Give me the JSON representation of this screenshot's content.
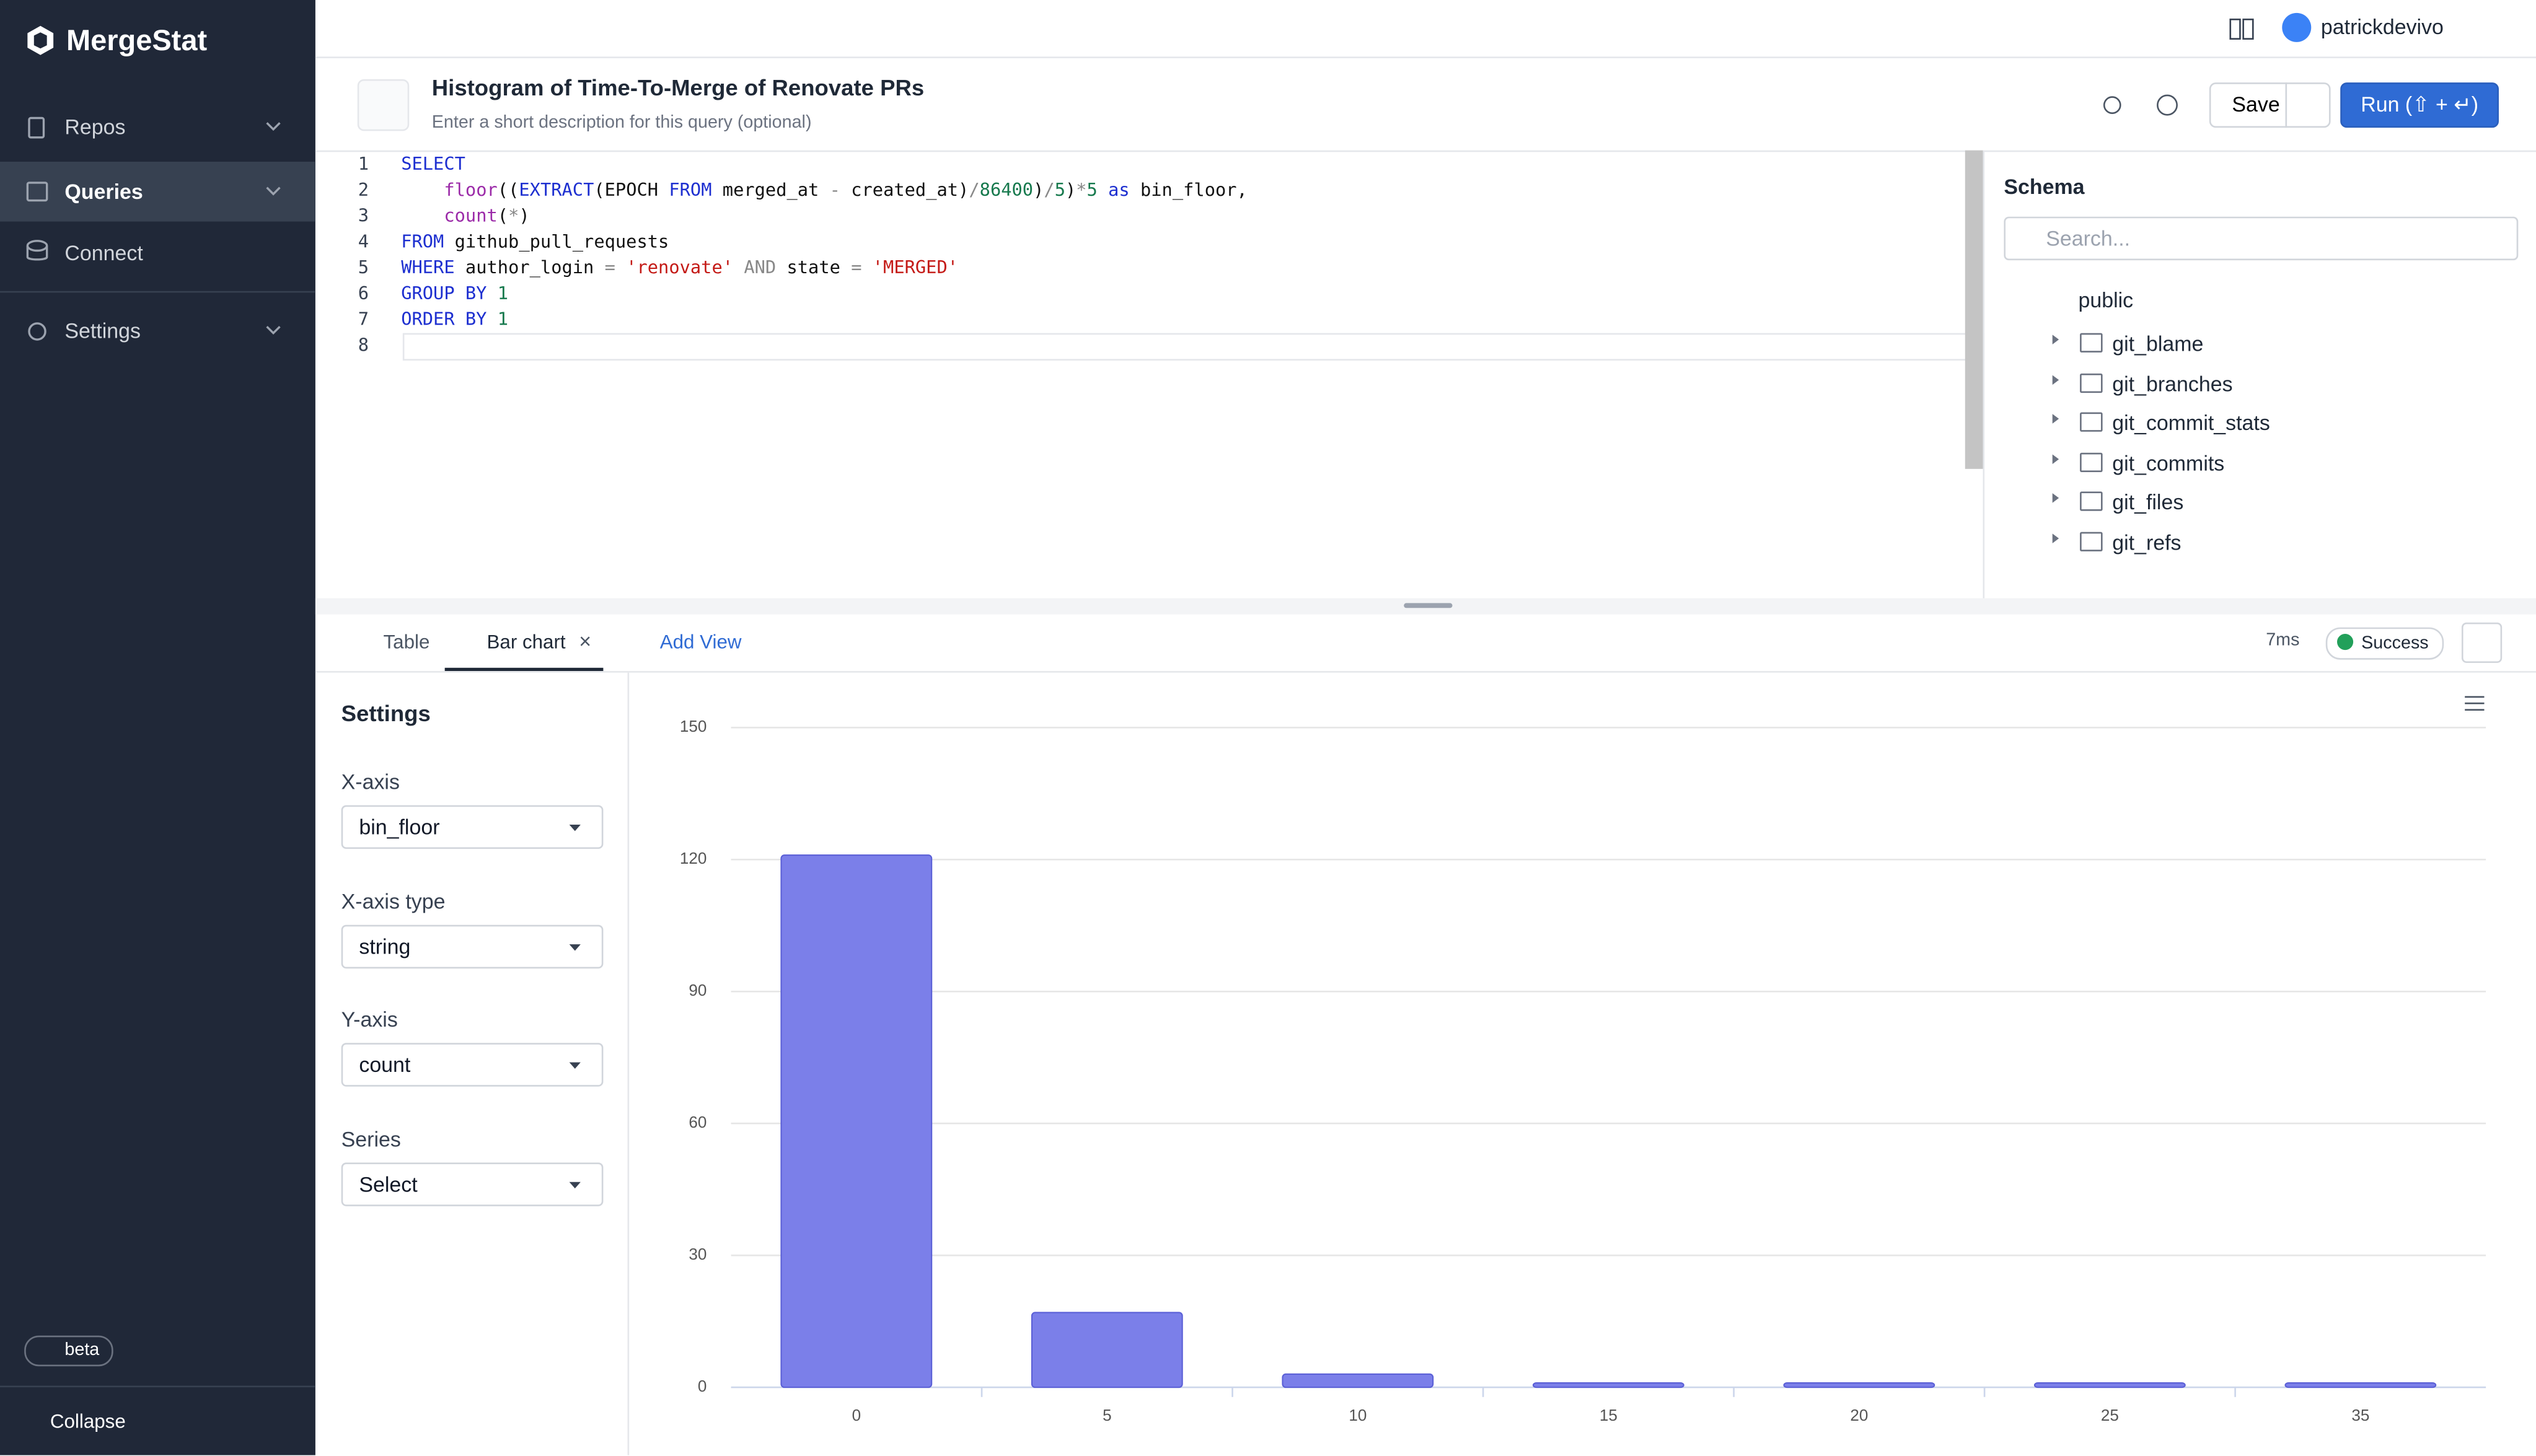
{
  "sidebar": {
    "brand": "MergeStat",
    "nav": [
      "Repos",
      "Queries",
      "Connect",
      "Settings"
    ],
    "beta": "beta",
    "collapse": "Collapse"
  },
  "topbar": {
    "user": "patrickdevivo"
  },
  "query": {
    "title": "Histogram of Time-To-Merge of Renovate PRs",
    "description": "Enter a short description for this query (optional)",
    "save": "Save",
    "run": "Run (⇧ + ↵)"
  },
  "editor": {
    "lines": [
      {
        "number": "1",
        "text": "SELECT"
      },
      {
        "number": "2",
        "text": "    floor((EXTRACT(EPOCH FROM merged_at - created_at)/86400)/5)*5 as bin_floor,"
      },
      {
        "number": "3",
        "text": "    count(*)"
      },
      {
        "number": "4",
        "text": "FROM github_pull_requests"
      },
      {
        "number": "5",
        "text": "WHERE author_login = 'renovate' AND state = 'MERGED'"
      },
      {
        "number": "6",
        "text": "GROUP BY 1"
      },
      {
        "number": "7",
        "text": "ORDER BY 1"
      },
      {
        "number": "8",
        "text": ""
      }
    ]
  },
  "schema": {
    "title": "Schema",
    "search": "Search...",
    "root": "public",
    "tables": [
      "git_blame",
      "git_branches",
      "git_commit_stats",
      "git_commits",
      "git_files",
      "git_refs"
    ]
  },
  "results": {
    "tabs": [
      "Table",
      "Bar chart"
    ],
    "add_view": "Add View",
    "time": "7ms",
    "status": "Success"
  },
  "settings": {
    "title": "Settings",
    "fields": [
      {
        "label": "X-axis",
        "value": "bin_floor"
      },
      {
        "label": "X-axis type",
        "value": "string"
      },
      {
        "label": "Y-axis",
        "value": "count"
      },
      {
        "label": "Series",
        "value": "Select"
      }
    ]
  },
  "chart_data": {
    "type": "bar",
    "categories": [
      "0",
      "5",
      "10",
      "15",
      "20",
      "25",
      "35"
    ],
    "values": [
      121,
      17,
      3,
      1,
      1,
      1,
      1
    ],
    "color": "#7b7fe9",
    "ylim": [
      0,
      150
    ],
    "yticks": [
      0,
      30,
      60,
      90,
      120,
      150
    ],
    "grid": true
  }
}
